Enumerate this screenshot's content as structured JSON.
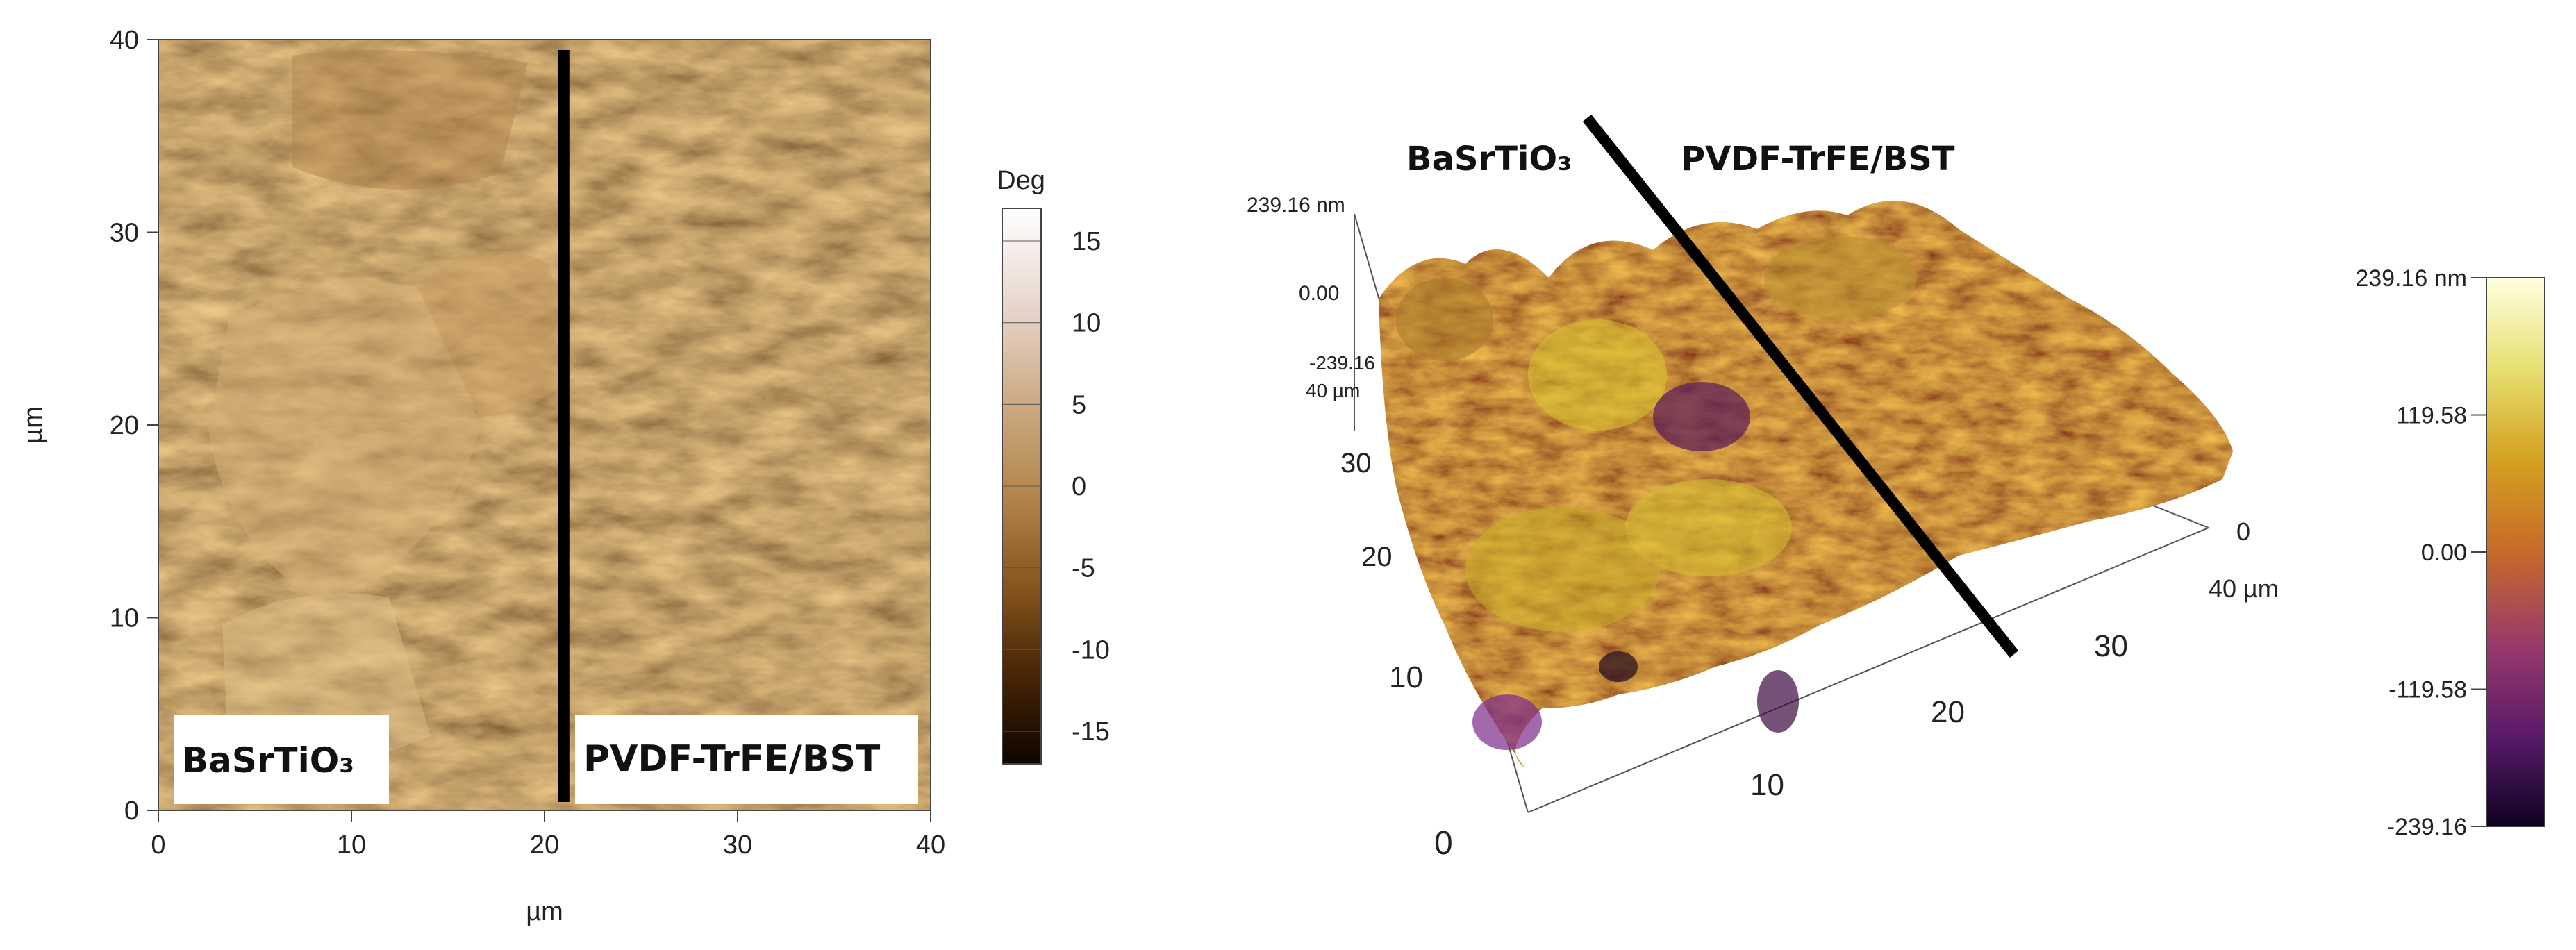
{
  "chart_data": [
    {
      "type": "heatmap",
      "title": "",
      "xlabel": "µm",
      "ylabel": "µm",
      "xlim": [
        0,
        40
      ],
      "ylim": [
        0,
        40
      ],
      "x_ticks": [
        "0",
        "10",
        "20",
        "30",
        "40"
      ],
      "y_ticks": [
        "0",
        "10",
        "20",
        "30",
        "40"
      ],
      "divider_x": 21,
      "region_labels": [
        "BaSrTiO₃",
        "PVDF-TrFE/BST"
      ],
      "colorbar": {
        "label": "Deg",
        "range": [
          -17,
          17
        ],
        "ticks": [
          "15",
          "10",
          "5",
          "0",
          "-5",
          "-10",
          "-15"
        ],
        "colors": [
          "#0c0500",
          "#4a2606",
          "#8a5a20",
          "#b58a50",
          "#cfae8a",
          "#e9d8d0",
          "#ffffff"
        ]
      }
    },
    {
      "type": "surface",
      "title": "",
      "region_labels": [
        "BaSrTiO₃",
        "PVDF-TrFE/BST"
      ],
      "z_labels": [
        "239.16 nm",
        "0.00",
        "-239.16"
      ],
      "y_axis_labels": [
        "40 µm",
        "30",
        "20",
        "10",
        "0"
      ],
      "x_axis_labels": [
        "10",
        "20",
        "30"
      ],
      "depth_axis_labels": [
        "0",
        "40 µm"
      ],
      "colorbar": {
        "range": [
          -239.16,
          239.16
        ],
        "ticks": [
          "239.16 nm",
          "119.58",
          "0.00",
          "-119.58",
          "-239.16"
        ],
        "colors": [
          "#0d0220",
          "#5a1a6a",
          "#9a3a6a",
          "#c66a2a",
          "#d4a020",
          "#e6e070",
          "#ffffe0"
        ]
      }
    }
  ]
}
